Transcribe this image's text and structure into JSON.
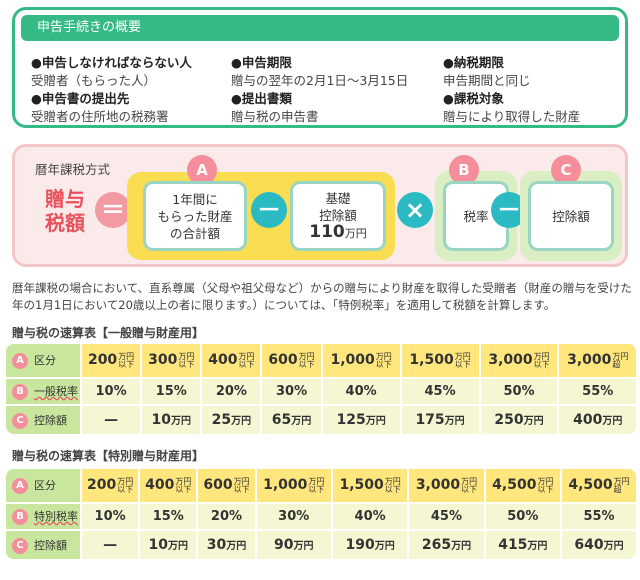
{
  "overview": {
    "title": "申告手続きの概要",
    "items": [
      {
        "heading": "●申告しなければならない人",
        "value": "受贈者（もらった人）"
      },
      {
        "heading": "●申告書の提出先",
        "value": "受贈者の住所地の税務署"
      },
      {
        "heading": "●申告期限",
        "value": "贈与の翌年の2月1日～3月15日"
      },
      {
        "heading": "●提出書類",
        "value": "贈与税の申告書"
      },
      {
        "heading": "●納税期限",
        "value": "申告期間と同じ"
      },
      {
        "heading": "●課税対象",
        "value": "贈与により取得した財産"
      }
    ]
  },
  "formula": {
    "method": "暦年課税方式",
    "result_line1": "贈与",
    "result_line2": "税額",
    "equals": "＝",
    "minus": "－",
    "times": "×",
    "a": {
      "badge": "A",
      "line1": "1年間に",
      "line2": "もらった財産",
      "line3": "の合計額"
    },
    "deduction": {
      "line1": "基礎",
      "line2": "控除額",
      "amount": "110",
      "unit": "万円"
    },
    "b": {
      "badge": "B",
      "label": "税率"
    },
    "c": {
      "badge": "C",
      "label": "控除額"
    }
  },
  "description": "暦年課税の場合において、直系尊属（父母や祖父母など）からの贈与により財産を取得した受贈者（財産の贈与を受けた年の1月1日において20歳以上の者に限ります。）については、「特例税率」を適用して税額を計算します。",
  "general_table": {
    "title": "贈与税の速算表【一般贈与財産用】",
    "row_labels": {
      "a": "区分",
      "b": "一般税率",
      "c": "控除額"
    },
    "badges": {
      "a": "A",
      "b": "B",
      "c": "C"
    },
    "brackets": [
      {
        "amount": "200",
        "unit_top": "万円",
        "unit_bottom": "以下"
      },
      {
        "amount": "300",
        "unit_top": "万円",
        "unit_bottom": "以下"
      },
      {
        "amount": "400",
        "unit_top": "万円",
        "unit_bottom": "以下"
      },
      {
        "amount": "600",
        "unit_top": "万円",
        "unit_bottom": "以下"
      },
      {
        "amount": "1,000",
        "unit_top": "万円",
        "unit_bottom": "以下"
      },
      {
        "amount": "1,500",
        "unit_top": "万円",
        "unit_bottom": "以下"
      },
      {
        "amount": "3,000",
        "unit_top": "万円",
        "unit_bottom": "以下"
      },
      {
        "amount": "3,000",
        "unit_top": "万円",
        "unit_bottom": "超"
      }
    ],
    "rates": [
      "10%",
      "15%",
      "20%",
      "30%",
      "40%",
      "45%",
      "50%",
      "55%"
    ],
    "deductions": [
      {
        "num": "—",
        "unit": ""
      },
      {
        "num": "10",
        "unit": "万円"
      },
      {
        "num": "25",
        "unit": "万円"
      },
      {
        "num": "65",
        "unit": "万円"
      },
      {
        "num": "125",
        "unit": "万円"
      },
      {
        "num": "175",
        "unit": "万円"
      },
      {
        "num": "250",
        "unit": "万円"
      },
      {
        "num": "400",
        "unit": "万円"
      }
    ]
  },
  "special_table": {
    "title": "贈与税の速算表【特別贈与財産用】",
    "row_labels": {
      "a": "区分",
      "b": "特別税率",
      "c": "控除額"
    },
    "badges": {
      "a": "A",
      "b": "B",
      "c": "C"
    },
    "brackets": [
      {
        "amount": "200",
        "unit_top": "万円",
        "unit_bottom": "以下"
      },
      {
        "amount": "400",
        "unit_top": "万円",
        "unit_bottom": "以下"
      },
      {
        "amount": "600",
        "unit_top": "万円",
        "unit_bottom": "以下"
      },
      {
        "amount": "1,000",
        "unit_top": "万円",
        "unit_bottom": "以下"
      },
      {
        "amount": "1,500",
        "unit_top": "万円",
        "unit_bottom": "以下"
      },
      {
        "amount": "3,000",
        "unit_top": "万円",
        "unit_bottom": "以下"
      },
      {
        "amount": "4,500",
        "unit_top": "万円",
        "unit_bottom": "以下"
      },
      {
        "amount": "4,500",
        "unit_top": "万円",
        "unit_bottom": "超"
      }
    ],
    "rates": [
      "10%",
      "15%",
      "20%",
      "30%",
      "40%",
      "45%",
      "50%",
      "55%"
    ],
    "deductions": [
      {
        "num": "—",
        "unit": ""
      },
      {
        "num": "10",
        "unit": "万円"
      },
      {
        "num": "30",
        "unit": "万円"
      },
      {
        "num": "90",
        "unit": "万円"
      },
      {
        "num": "190",
        "unit": "万円"
      },
      {
        "num": "265",
        "unit": "万円"
      },
      {
        "num": "415",
        "unit": "万円"
      },
      {
        "num": "640",
        "unit": "万円"
      }
    ]
  }
}
